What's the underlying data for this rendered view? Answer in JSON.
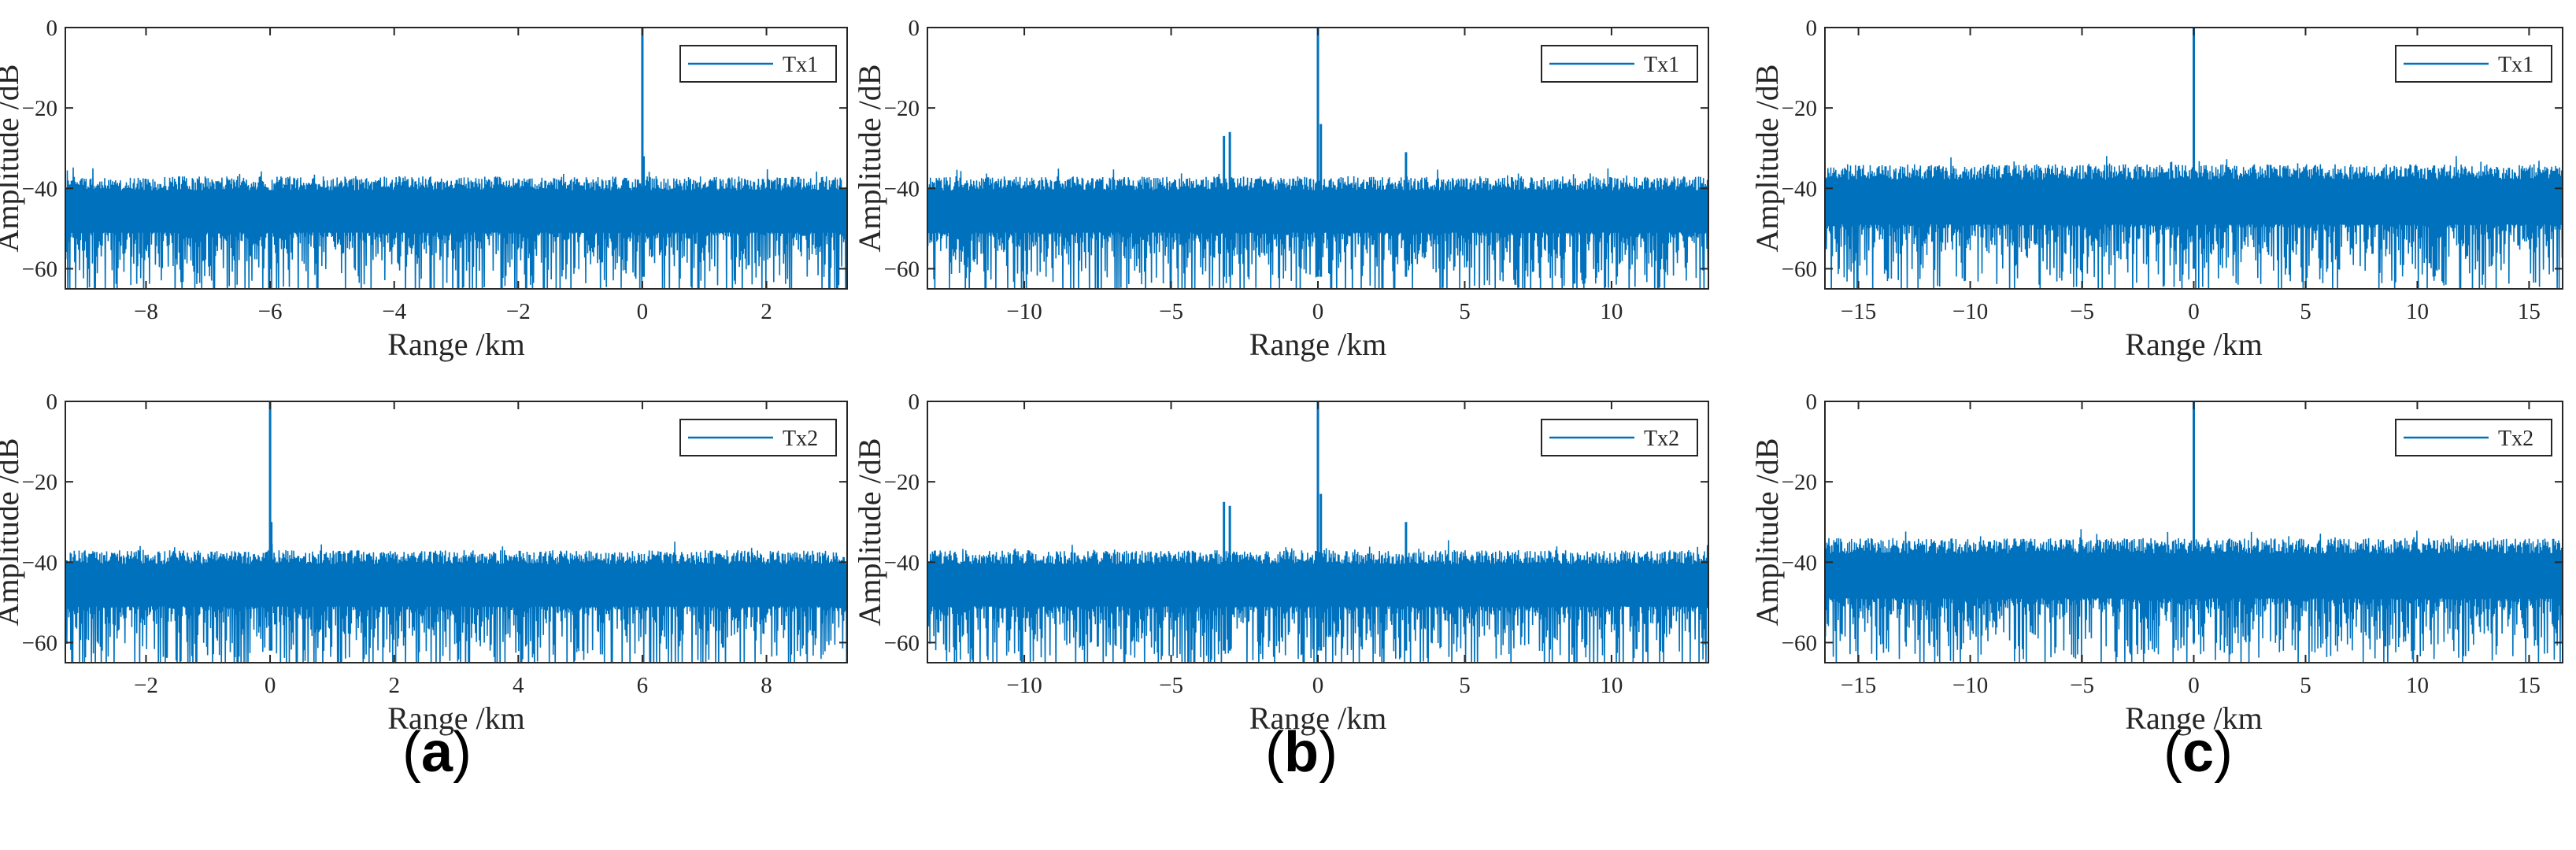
{
  "figure": {
    "panels": [
      {
        "letter": "a",
        "open": "(",
        "close": ")"
      },
      {
        "letter": "b",
        "open": "(",
        "close": ")"
      },
      {
        "letter": "c",
        "open": "(",
        "close": ")"
      }
    ]
  },
  "chart_data": [
    {
      "type": "line",
      "id": "a-top",
      "xlabel": "Range /km",
      "ylabel": "Amplitude /dB",
      "xlim": [
        -9.3,
        3.3
      ],
      "ylim": [
        -65,
        0
      ],
      "xticks": [
        -8,
        -6,
        -4,
        -2,
        0,
        2
      ],
      "yticks": [
        0,
        -20,
        -40,
        -60
      ],
      "legend": "Tx1",
      "legend_position": "top-right",
      "color": "#0072BD",
      "noise_floor_db": -47,
      "noise_ceiling_db": -37,
      "peaks": [
        {
          "x": 0,
          "y": 0
        },
        {
          "x": 0.02,
          "y": -32
        }
      ]
    },
    {
      "type": "line",
      "id": "b-top",
      "xlabel": "Range /km",
      "ylabel": "Amplitude /dB",
      "xlim": [
        -13.3,
        13.3
      ],
      "ylim": [
        -65,
        0
      ],
      "xticks": [
        -10,
        -5,
        0,
        5,
        10
      ],
      "yticks": [
        0,
        -20,
        -40,
        -60
      ],
      "legend": "Tx1",
      "legend_position": "top-right",
      "color": "#0072BD",
      "noise_floor_db": -47,
      "noise_ceiling_db": -37,
      "peaks": [
        {
          "x": 0,
          "y": 0
        },
        {
          "x": 0.1,
          "y": -24
        },
        {
          "x": -3.2,
          "y": -27
        },
        {
          "x": -3.0,
          "y": -26
        },
        {
          "x": 3.0,
          "y": -31
        }
      ]
    },
    {
      "type": "line",
      "id": "c-top",
      "xlabel": "Range /km",
      "ylabel": "Amplitude /dB",
      "xlim": [
        -16.5,
        16.5
      ],
      "ylim": [
        -65,
        0
      ],
      "xticks": [
        -15,
        -10,
        -5,
        0,
        5,
        10,
        15
      ],
      "yticks": [
        0,
        -20,
        -40,
        -60
      ],
      "legend": "Tx1",
      "legend_position": "top-right",
      "color": "#0072BD",
      "noise_floor_db": -45,
      "noise_ceiling_db": -34,
      "peaks": [
        {
          "x": 0,
          "y": 0
        }
      ]
    },
    {
      "type": "line",
      "id": "a-bottom",
      "xlabel": "Range /km",
      "ylabel": "Amplitude /dB",
      "xlim": [
        -3.3,
        9.3
      ],
      "ylim": [
        -65,
        0
      ],
      "xticks": [
        -2,
        0,
        2,
        4,
        6,
        8
      ],
      "yticks": [
        0,
        -20,
        -40,
        -60
      ],
      "legend": "Tx2",
      "legend_position": "top-right",
      "color": "#0072BD",
      "noise_floor_db": -47,
      "noise_ceiling_db": -37,
      "peaks": [
        {
          "x": 0,
          "y": 0
        },
        {
          "x": 0.02,
          "y": -30
        }
      ]
    },
    {
      "type": "line",
      "id": "b-bottom",
      "xlabel": "Range /km",
      "ylabel": "Amplitude /dB",
      "xlim": [
        -13.3,
        13.3
      ],
      "ylim": [
        -65,
        0
      ],
      "xticks": [
        -10,
        -5,
        0,
        5,
        10
      ],
      "yticks": [
        0,
        -20,
        -40,
        -60
      ],
      "legend": "Tx2",
      "legend_position": "top-right",
      "color": "#0072BD",
      "noise_floor_db": -47,
      "noise_ceiling_db": -37,
      "peaks": [
        {
          "x": 0,
          "y": 0
        },
        {
          "x": 0.1,
          "y": -23
        },
        {
          "x": -3.2,
          "y": -25
        },
        {
          "x": -3.0,
          "y": -26
        },
        {
          "x": 3.0,
          "y": -30
        }
      ]
    },
    {
      "type": "line",
      "id": "c-bottom",
      "xlabel": "Range /km",
      "ylabel": "Amplitude /dB",
      "xlim": [
        -16.5,
        16.5
      ],
      "ylim": [
        -65,
        0
      ],
      "xticks": [
        -15,
        -10,
        -5,
        0,
        5,
        10,
        15
      ],
      "yticks": [
        0,
        -20,
        -40,
        -60
      ],
      "legend": "Tx2",
      "legend_position": "top-right",
      "color": "#0072BD",
      "noise_floor_db": -45,
      "noise_ceiling_db": -34,
      "peaks": [
        {
          "x": 0,
          "y": 0
        }
      ]
    }
  ]
}
